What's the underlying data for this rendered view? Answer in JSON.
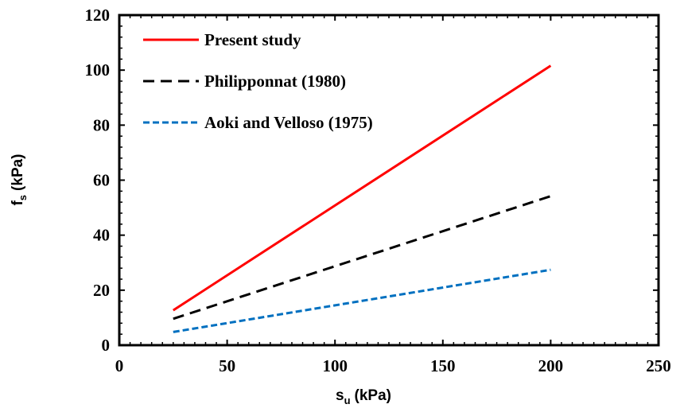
{
  "chart_data": {
    "type": "line",
    "title": "",
    "xlabel": "s",
    "xlabel_sub": "u",
    "xlabel_unit": "(kPa)",
    "ylabel": "f",
    "ylabel_sub": "s",
    "ylabel_unit": "(kPa)",
    "xlim": [
      0,
      250
    ],
    "ylim": [
      0,
      120
    ],
    "x_ticks": [
      0,
      50,
      100,
      150,
      200,
      250
    ],
    "y_ticks": [
      0,
      20,
      40,
      60,
      80,
      100,
      120
    ],
    "grid": false,
    "legend_position": "top-left",
    "series": [
      {
        "name": "Present study",
        "color": "#ff0000",
        "dash": "solid",
        "x": [
          25,
          200
        ],
        "y": [
          12.7,
          101.6
        ]
      },
      {
        "name": "Philipponnat (1980)",
        "color": "#000000",
        "dash": "dashed",
        "x": [
          25,
          200
        ],
        "y": [
          9.6,
          54.2
        ]
      },
      {
        "name": "Aoki and Velloso (1975)",
        "color": "#0070c0",
        "dash": "dotted",
        "x": [
          25,
          200
        ],
        "y": [
          4.8,
          27.4
        ]
      }
    ]
  }
}
